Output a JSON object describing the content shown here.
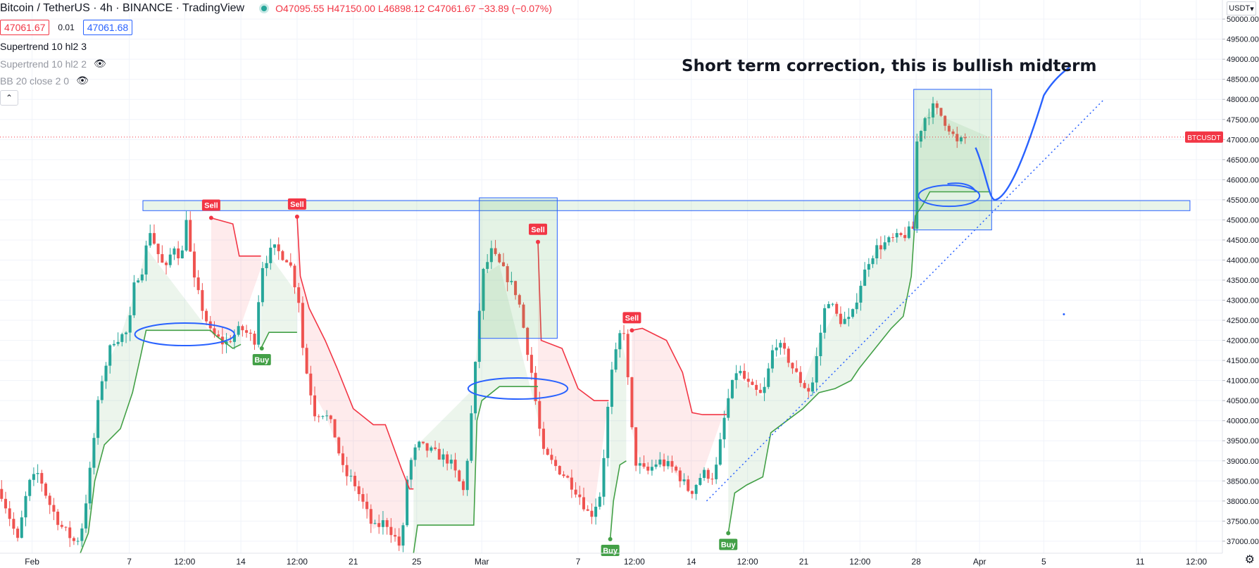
{
  "header": {
    "symbol": "Bitcoin / TetherUS · 4h · BINANCE · TradingView",
    "open": "O47095.55",
    "high": "H47150.00",
    "low": "L46898.12",
    "close": "C47061.67",
    "change": "−33.89 (−0.07%)",
    "bid": "47061.67",
    "spread": "0.01",
    "ask": "47061.68"
  },
  "indicators": [
    {
      "label": "Supertrend 10 hl2 3",
      "visible": true
    },
    {
      "label": "Supertrend 10 hl2 2",
      "visible": false
    },
    {
      "label": "BB 20 close 2 0",
      "visible": false
    }
  ],
  "currency_label": "USDT",
  "collapse_icon": "chevron-up-icon",
  "settings_icon": "gear-icon",
  "colors": {
    "up": "#26a69a",
    "down": "#ef5350",
    "trend_up": "#43a047",
    "trend_down": "#f23645",
    "drawing": "#2962ff"
  },
  "chart_data": {
    "type": "candlestick",
    "symbol_tag": "BTCUSDT",
    "last_price": 47061.67,
    "ylim": [
      36700,
      50300
    ],
    "y_ticks": [
      37000,
      37500,
      38000,
      38500,
      39000,
      39500,
      40000,
      40500,
      41000,
      41500,
      42000,
      42500,
      43000,
      43500,
      44000,
      44500,
      45000,
      45500,
      46000,
      46500,
      47000,
      47500,
      48000,
      48500,
      49000,
      49500,
      50000
    ],
    "x_ticks": [
      "Feb",
      "7",
      "12:00",
      "14",
      "12:00",
      "21",
      "25",
      "Mar",
      "7",
      "12:00",
      "14",
      "12:00",
      "21",
      "12:00",
      "28",
      "Apr",
      "5",
      "11",
      "12:00"
    ],
    "price_path": [
      [
        0,
        38300
      ],
      [
        12,
        37600
      ],
      [
        22,
        37000
      ],
      [
        35,
        38400
      ],
      [
        48,
        38700
      ],
      [
        60,
        38000
      ],
      [
        75,
        37400
      ],
      [
        92,
        37000
      ],
      [
        100,
        37100
      ],
      [
        110,
        38400
      ],
      [
        125,
        40900
      ],
      [
        140,
        42000
      ],
      [
        160,
        42200
      ],
      [
        168,
        43500
      ],
      [
        178,
        43800
      ],
      [
        186,
        44800
      ],
      [
        196,
        44200
      ],
      [
        206,
        43700
      ],
      [
        216,
        44400
      ],
      [
        226,
        44000
      ],
      [
        232,
        45100
      ],
      [
        240,
        43600
      ],
      [
        252,
        42800
      ],
      [
        262,
        42200
      ],
      [
        280,
        41900
      ],
      [
        300,
        42300
      ],
      [
        318,
        42000
      ],
      [
        325,
        43800
      ],
      [
        340,
        44300
      ],
      [
        360,
        44000
      ],
      [
        372,
        43000
      ],
      [
        378,
        41600
      ],
      [
        392,
        40200
      ],
      [
        404,
        40200
      ],
      [
        415,
        39800
      ],
      [
        428,
        38700
      ],
      [
        440,
        38500
      ],
      [
        455,
        37800
      ],
      [
        465,
        37300
      ],
      [
        480,
        37500
      ],
      [
        500,
        36800
      ],
      [
        508,
        38800
      ],
      [
        520,
        39400
      ],
      [
        540,
        39200
      ],
      [
        560,
        39000
      ],
      [
        578,
        38200
      ],
      [
        590,
        40800
      ],
      [
        600,
        43600
      ],
      [
        612,
        44200
      ],
      [
        628,
        43700
      ],
      [
        645,
        43100
      ],
      [
        662,
        41200
      ],
      [
        676,
        39200
      ],
      [
        690,
        38900
      ],
      [
        705,
        38600
      ],
      [
        720,
        38200
      ],
      [
        735,
        37600
      ],
      [
        748,
        38200
      ],
      [
        760,
        41000
      ],
      [
        776,
        42500
      ],
      [
        790,
        39000
      ],
      [
        805,
        38700
      ],
      [
        820,
        39000
      ],
      [
        840,
        38800
      ],
      [
        860,
        38200
      ],
      [
        875,
        38700
      ],
      [
        890,
        38600
      ],
      [
        905,
        40400
      ],
      [
        918,
        41300
      ],
      [
        935,
        40800
      ],
      [
        950,
        40600
      ],
      [
        965,
        42000
      ],
      [
        980,
        41600
      ],
      [
        990,
        41200
      ],
      [
        1000,
        40900
      ],
      [
        1010,
        40700
      ],
      [
        1022,
        42200
      ],
      [
        1030,
        43100
      ],
      [
        1045,
        42500
      ],
      [
        1060,
        42500
      ],
      [
        1070,
        43300
      ],
      [
        1082,
        44000
      ],
      [
        1092,
        44300
      ],
      [
        1110,
        44500
      ],
      [
        1125,
        44600
      ],
      [
        1138,
        44800
      ],
      [
        1140,
        46800
      ],
      [
        1150,
        47500
      ],
      [
        1162,
        47800
      ],
      [
        1172,
        47600
      ],
      [
        1182,
        47300
      ],
      [
        1192,
        46900
      ],
      [
        1205,
        47060
      ]
    ],
    "annotations": [
      {
        "kind": "sell",
        "label": "Sell"
      },
      {
        "kind": "sell",
        "label": "Sell"
      },
      {
        "kind": "sell",
        "label": "Sell"
      },
      {
        "kind": "sell",
        "label": "Sell"
      },
      {
        "kind": "buy",
        "label": "Buy"
      },
      {
        "kind": "buy",
        "label": "Buy"
      },
      {
        "kind": "buy",
        "label": "Buy"
      }
    ],
    "annotation_points": [
      [
        263,
        45050
      ],
      [
        370,
        45080
      ],
      [
        670,
        44450
      ],
      [
        787,
        42250
      ],
      [
        326,
        41800
      ],
      [
        760,
        37050
      ],
      [
        907,
        37200
      ]
    ],
    "text_note": "Short term correction, this is bullish midterm",
    "resistance_zone": [
      45230,
      45480
    ],
    "boxes": [
      [
        1138,
        1235,
        44750,
        48250
      ],
      [
        597,
        694,
        42050,
        45550
      ]
    ],
    "trendline": [
      [
        880,
        38000
      ],
      [
        1375,
        48000
      ]
    ],
    "projection": [
      [
        1215,
        46800
      ],
      [
        1240,
        45500
      ],
      [
        1270,
        46300
      ],
      [
        1300,
        48100
      ],
      [
        1332,
        48800
      ]
    ]
  }
}
